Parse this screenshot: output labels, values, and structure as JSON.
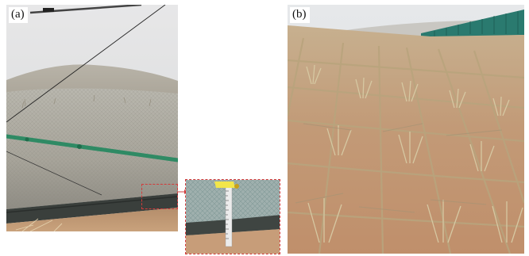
{
  "figure": {
    "panels": [
      {
        "label": "(a)"
      },
      {
        "label": "(b)"
      }
    ],
    "colors": {
      "sky": "#e4e6e9",
      "sand": "#c09a78",
      "dark_band": "#3a3f3c",
      "pipe": "#2f8a64",
      "grass": "#b7a682",
      "fence": "#2a7a6f",
      "highlight": "#d23b3b",
      "ruler": "#f2e64a"
    }
  }
}
